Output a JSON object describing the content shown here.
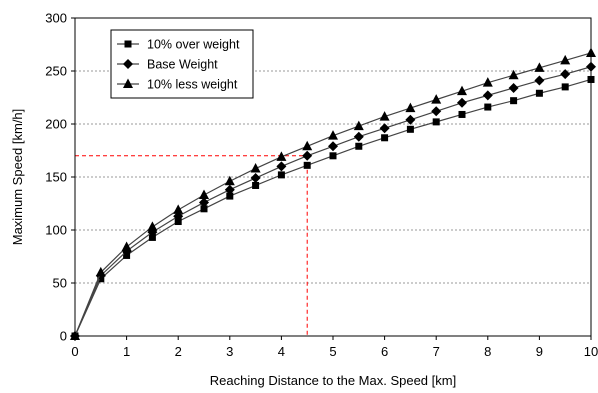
{
  "chart_data": {
    "type": "line",
    "xlabel": "Reaching Distance to the Max. Speed [km]",
    "ylabel": "Maximum Speed [km/h]",
    "xlim": [
      0,
      10
    ],
    "ylim": [
      0,
      300
    ],
    "xticks": [
      "0",
      "1",
      "2",
      "3",
      "4",
      "5",
      "6",
      "7",
      "8",
      "9",
      "10"
    ],
    "yticks": [
      "0",
      "50",
      "100",
      "150",
      "200",
      "250",
      "300"
    ],
    "grid": "horizontal dotted",
    "legend_position": "top-left",
    "x": [
      0,
      0.5,
      1,
      1.5,
      2,
      2.5,
      3,
      3.5,
      4,
      4.5,
      5,
      5.5,
      6,
      6.5,
      7,
      7.5,
      8,
      8.5,
      9,
      9.5,
      10
    ],
    "series": [
      {
        "name": "10% over weight",
        "marker": "square",
        "values": [
          0,
          54,
          76,
          93,
          108,
          120,
          132,
          142,
          152,
          161,
          170,
          179,
          187,
          195,
          202,
          209,
          216,
          222,
          229,
          235,
          242
        ]
      },
      {
        "name": "Base Weight",
        "marker": "diamond",
        "values": [
          0,
          57,
          80,
          98,
          113,
          126,
          138,
          149,
          160,
          170,
          179,
          188,
          196,
          204,
          212,
          220,
          227,
          234,
          241,
          247,
          254
        ]
      },
      {
        "name": "10% less weight",
        "marker": "triangle",
        "values": [
          0,
          60,
          84,
          103,
          119,
          133,
          146,
          158,
          169,
          179,
          189,
          198,
          207,
          215,
          223,
          231,
          239,
          246,
          253,
          260,
          267
        ]
      }
    ],
    "annotation": {
      "type": "dashed-crosshair",
      "color": "#ff0000",
      "x": 4.5,
      "y": 170
    },
    "colors": {
      "line": "#444444",
      "marker": "#000000",
      "grid": "#9a9a9a",
      "annotation": "#ff0000"
    }
  }
}
